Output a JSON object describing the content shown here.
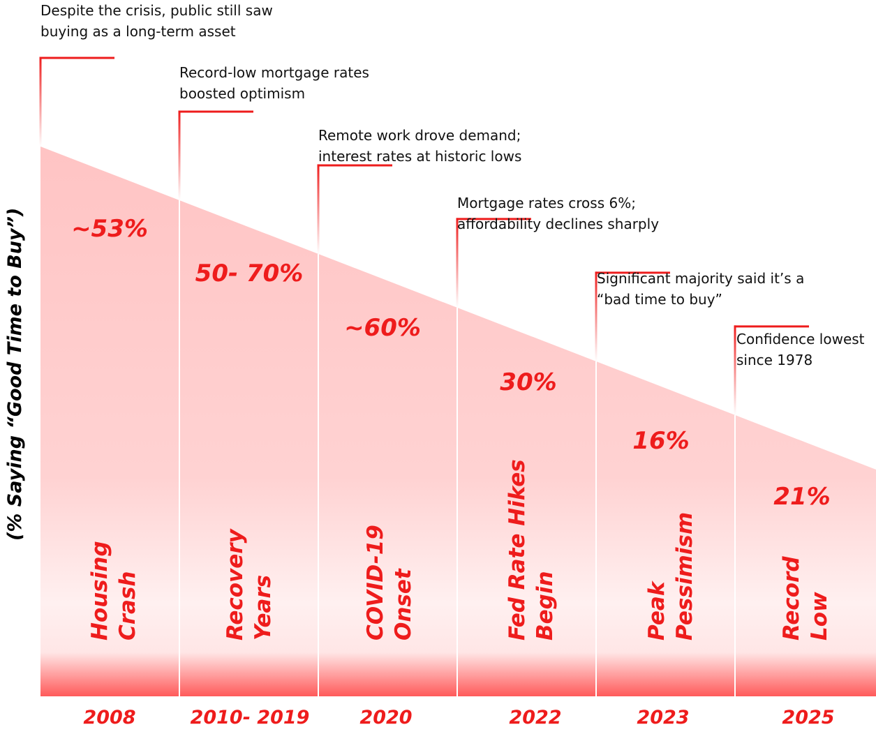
{
  "chart_data": {
    "type": "area",
    "title": "",
    "xlabel": "",
    "ylabel": "(% Saying “Good Time to Buy”)",
    "categories": [
      "2008",
      "2010- 2019",
      "2020",
      "2022",
      "2023",
      "2025"
    ],
    "value_labels": [
      "~53%",
      "50- 70%",
      "~60%",
      "30%",
      "16%",
      "21%"
    ],
    "periods": [
      [
        "Housing",
        "Crash"
      ],
      [
        "Recovery",
        "Years"
      ],
      [
        "COVID-19",
        "Onset"
      ],
      [
        "Fed Rate Hikes",
        "Begin"
      ],
      [
        "Peak",
        "Pessimism"
      ],
      [
        "Record",
        "Low"
      ]
    ],
    "annotations": [
      [
        "Despite the crisis, public still saw",
        "buying as a long-term asset"
      ],
      [
        "Record-low mortgage rates",
        "boosted optimism"
      ],
      [
        "Remote work drove demand;",
        "interest rates at historic lows"
      ],
      [
        "Mortgage rates cross 6%;",
        "affordability declines sharply"
      ],
      [
        "Significant majority said it’s a",
        "“bad time to buy”"
      ],
      [
        "Confidence lowest",
        "since 1978"
      ]
    ],
    "colors": {
      "accent": "#ee1c1c",
      "fill_top": "#ffc4c4",
      "fill_bottom": "#ff5a5a"
    }
  }
}
